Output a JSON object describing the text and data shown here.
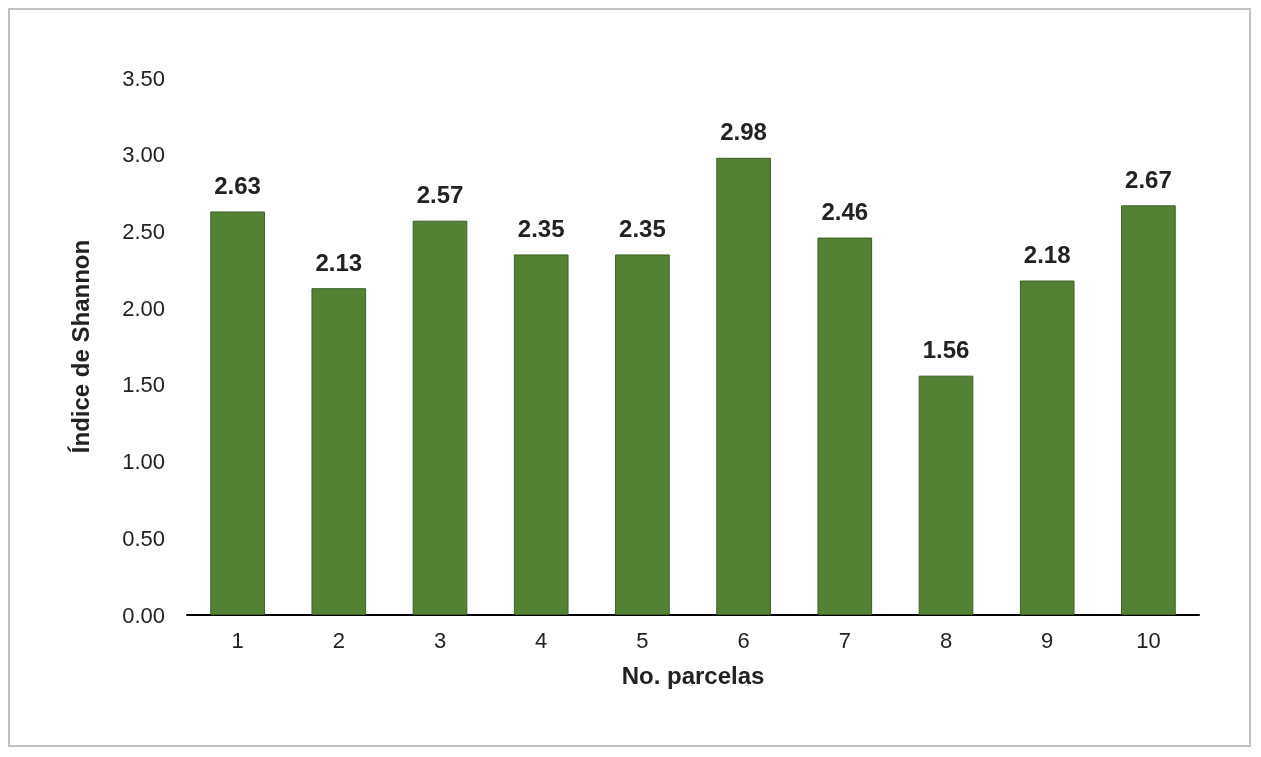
{
  "chart_data": {
    "type": "bar",
    "xlabel": "No. parcelas",
    "ylabel": "Índice de Shannon",
    "categories": [
      "1",
      "2",
      "3",
      "4",
      "5",
      "6",
      "7",
      "8",
      "9",
      "10"
    ],
    "values": [
      2.63,
      2.13,
      2.57,
      2.35,
      2.35,
      2.98,
      2.46,
      1.56,
      2.18,
      2.67
    ],
    "color": "#548235",
    "ylim": [
      0,
      3.5
    ],
    "yticks": [
      {
        "value": 0,
        "label": "0.00"
      },
      {
        "value": 0.5,
        "label": "0.50"
      },
      {
        "value": 1,
        "label": "1.00"
      },
      {
        "value": 1.5,
        "label": "1.50"
      },
      {
        "value": 2,
        "label": "2.00"
      },
      {
        "value": 2.5,
        "label": "2.50"
      },
      {
        "value": 3,
        "label": "3.00"
      },
      {
        "value": 3.5,
        "label": "3.50"
      }
    ],
    "data_labels": true
  }
}
